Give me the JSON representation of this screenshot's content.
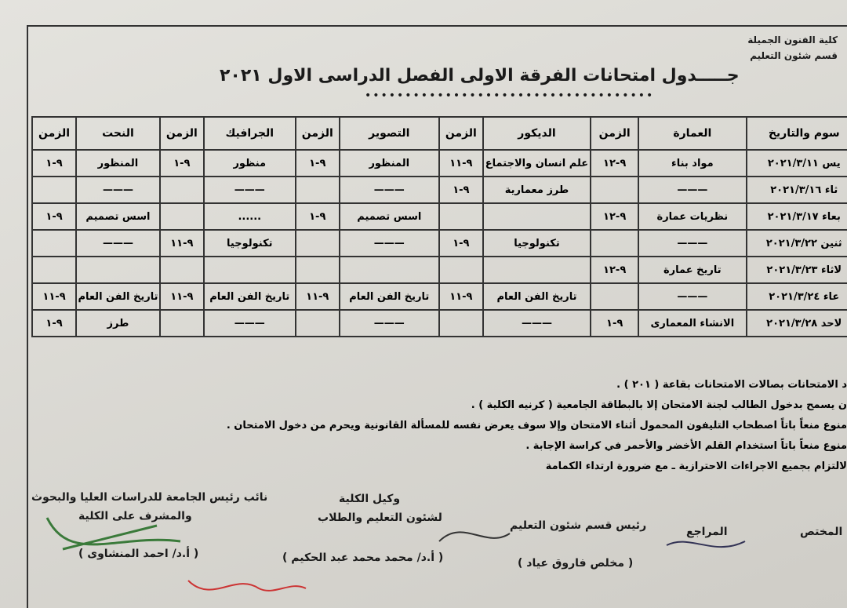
{
  "header": {
    "faculty": "كلية الفنون الجميلة",
    "department": "قسم شئون التعليم",
    "title": "جـــــدول امتحانات الفرقة الاولى الفصل الدراسى الاول ٢٠٢١"
  },
  "table": {
    "columns": [
      "سوم والتاريخ",
      "العمارة",
      "الزمن",
      "الديكور",
      "الزمن",
      "التصوير",
      "الزمن",
      "الجرافيك",
      "الزمن",
      "النحت",
      "الزمن"
    ],
    "rows": [
      [
        "يس ٢٠٢١/٣/١١",
        "مواد بناء",
        "٩-١٢",
        "علم انسان والاجتماع",
        "٩-١١",
        "المنظور",
        "٩-١",
        "منظور",
        "٩-١",
        "المنظور",
        "٩-١"
      ],
      [
        "ثاء ٢٠٢١/٣/١٦",
        "———",
        null,
        "طرز معمارية",
        "٩-١",
        "———",
        null,
        "———",
        null,
        "———",
        null
      ],
      [
        "بعاء ٢٠٢١/٣/١٧",
        "نظريات عمارة",
        "٩-١٢",
        null,
        null,
        "اسس تصميم",
        "٩-١",
        "......",
        null,
        "اسس تصميم",
        "٩-١"
      ],
      [
        "ثنين ٢٠٢١/٣/٢٢",
        "———",
        null,
        "تكنولوجيا",
        "٩-١",
        "———",
        null,
        "تكنولوجيا",
        "٩-١١",
        "———",
        null
      ],
      [
        "لاثاء ٢٠٢١/٣/٢٣",
        "تاريخ عمارة",
        "٩-١٢",
        null,
        null,
        null,
        null,
        null,
        null,
        null,
        null
      ],
      [
        "عاء ٢٠٢١/٣/٢٤",
        "———",
        null,
        "تاريخ الفن العام",
        "٩-١١",
        "تاريخ الفن العام",
        "٩-١١",
        "تاريخ الفن العام",
        "٩-١١",
        "تاريخ الفن العام",
        "٩-١١"
      ],
      [
        "لاحد ٢٠٢١/٣/٢٨",
        "الانشاء المعمارى",
        "٩-١",
        "———",
        null,
        "———",
        null,
        "———",
        null,
        "طرز",
        "٩-١"
      ]
    ]
  },
  "notes": [
    "د الامتحانات بصالات الامتحانات بقاعة ( ٢٠١ ) .",
    "ن يسمح بدخول الطالب لجنة الامتحان إلا بالبطاقة الجامعية ( كرنيه الكلية ) .",
    "منوع منعاً باتاً اصطحاب التليفون المحمول أثناء الامتحان وإلا سوف يعرض نفسه للمسألة القانونية ويحرم من دخول الامتحان .",
    "منوع منعاً باتاً استخدام القلم الأخضر والأحمر في كراسة الإجابة .",
    "لالتزام بجميع الاجراءات الاحترازية ـ مع ضرورة ارتداء الكمامة"
  ],
  "signatures": {
    "specialist": "المختص",
    "reviewer": "المراجع",
    "head": {
      "title": "رئيس قسم شئون التعليم",
      "name": "( مخلص فاروق عياد )"
    },
    "vice_dean": {
      "title1": "وكيل الكلية",
      "title2": "لشئون التعليم والطلاب",
      "name": "( أ.د/ محمد محمد عبد الحكيم )"
    },
    "vice_president": {
      "title1": "نائب رئيس الجامعة للدراسات العليا والبحوث",
      "title2": "والمشرف على الكلية",
      "name": "( أ.د/ احمد المنشاوى )"
    }
  }
}
